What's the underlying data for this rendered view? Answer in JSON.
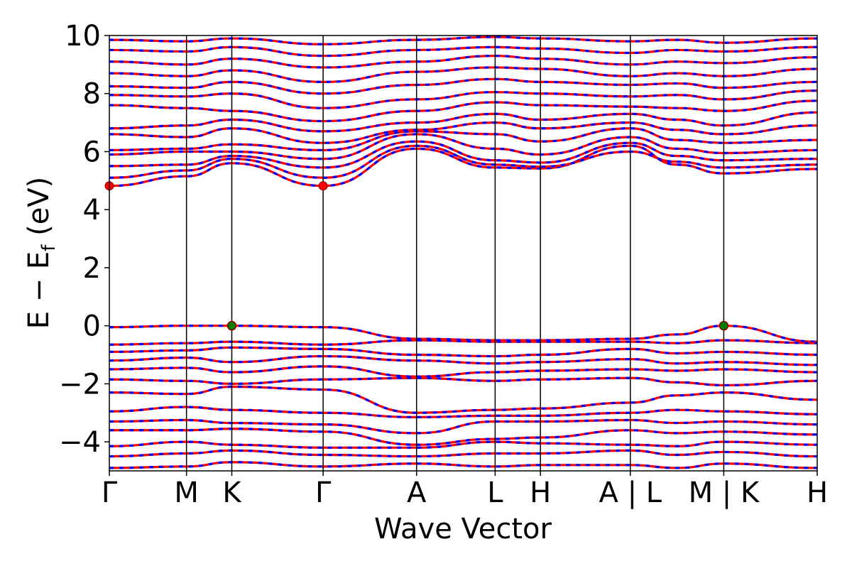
{
  "chart_data": {
    "type": "line",
    "xlabel": "Wave Vector",
    "ylabel": "E − E",
    "ylabel_sub": "f",
    "ylabel_unit": " (eV)",
    "ylim": [
      -5,
      10
    ],
    "yticks": [
      -4,
      -2,
      0,
      2,
      4,
      6,
      8,
      10
    ],
    "x_range": [
      0,
      1
    ],
    "kpoints": [
      {
        "label": "Γ",
        "x": 0.0
      },
      {
        "label": "M",
        "x": 0.109
      },
      {
        "label": "K",
        "x": 0.173
      },
      {
        "label": "Γ",
        "x": 0.302
      },
      {
        "label": "A",
        "x": 0.434
      },
      {
        "label": "L",
        "x": 0.545
      },
      {
        "label": "H",
        "x": 0.609
      },
      {
        "label": "A | L",
        "x": 0.736
      },
      {
        "label": "M | K",
        "x": 0.868
      },
      {
        "label": "H",
        "x": 1.0
      }
    ],
    "grid": false,
    "legend": "none",
    "band_colors": [
      "#ff0000",
      "#0000ff"
    ],
    "marker_colors": {
      "cbm": "#ff0000",
      "vbm": "#008000"
    },
    "cbm_points": [
      {
        "x": 0.0,
        "y": 4.82
      },
      {
        "x": 0.302,
        "y": 4.82
      }
    ],
    "vbm_points": [
      {
        "x": 0.173,
        "y": 0.0
      },
      {
        "x": 0.868,
        "y": 0.0
      }
    ],
    "series": [
      {
        "x": [
          0,
          0.109,
          0.173,
          0.302,
          0.434,
          0.545,
          0.609,
          0.736,
          0.802,
          0.868,
          1.0
        ],
        "values": [
          4.82,
          5.15,
          5.6,
          4.82,
          6.1,
          5.45,
          5.42,
          6.2,
          5.55,
          5.25,
          5.4
        ]
      },
      {
        "x": [
          0,
          0.109,
          0.173,
          0.302,
          0.434,
          0.545,
          0.609,
          0.736,
          0.802,
          0.868,
          1.0
        ],
        "values": [
          5.1,
          5.35,
          5.75,
          5.1,
          6.2,
          5.55,
          5.48,
          6.0,
          5.65,
          5.45,
          5.55
        ]
      },
      {
        "x": [
          0,
          0.109,
          0.173,
          0.302,
          0.434,
          0.545,
          0.609,
          0.736,
          0.802,
          0.868,
          1.0
        ],
        "values": [
          5.5,
          5.55,
          5.85,
          5.45,
          6.35,
          5.7,
          5.62,
          6.3,
          5.85,
          5.7,
          5.75
        ]
      },
      {
        "x": [
          0,
          0.109,
          0.173,
          0.302,
          0.434,
          0.545,
          0.609,
          0.736,
          0.802,
          0.868,
          1.0
        ],
        "values": [
          5.9,
          6.0,
          6.0,
          5.75,
          6.6,
          6.1,
          5.9,
          6.5,
          6.1,
          5.95,
          6.05
        ]
      },
      {
        "x": [
          0,
          0.109,
          0.173,
          0.302,
          0.434,
          0.545,
          0.609,
          0.736,
          0.802,
          0.868,
          1.0
        ],
        "values": [
          6.05,
          6.1,
          6.25,
          6.05,
          6.7,
          6.6,
          6.35,
          6.8,
          6.4,
          6.3,
          6.4
        ]
      },
      {
        "x": [
          0,
          0.109,
          0.173,
          0.302,
          0.434,
          0.545,
          0.609,
          0.736,
          0.802,
          0.868,
          1.0
        ],
        "values": [
          6.6,
          6.5,
          6.8,
          6.3,
          6.75,
          7.0,
          6.8,
          7.0,
          6.75,
          6.6,
          6.9
        ]
      },
      {
        "x": [
          0,
          0.109,
          0.173,
          0.302,
          0.434,
          0.545,
          0.609,
          0.736,
          0.802,
          0.868,
          1.0
        ],
        "values": [
          6.8,
          6.9,
          7.1,
          6.7,
          7.0,
          7.3,
          7.1,
          7.3,
          7.1,
          6.9,
          7.35
        ]
      },
      {
        "x": [
          0,
          0.109,
          0.173,
          0.302,
          0.434,
          0.545,
          0.609,
          0.736,
          0.802,
          0.868,
          1.0
        ],
        "values": [
          7.6,
          7.5,
          7.4,
          7.05,
          7.4,
          7.7,
          7.6,
          7.55,
          7.5,
          7.4,
          7.75
        ]
      },
      {
        "x": [
          0,
          0.109,
          0.173,
          0.302,
          0.434,
          0.545,
          0.609,
          0.736,
          0.802,
          0.868,
          1.0
        ],
        "values": [
          7.95,
          7.9,
          8.0,
          7.5,
          7.8,
          8.05,
          8.0,
          7.9,
          7.95,
          7.8,
          8.1
        ]
      },
      {
        "x": [
          0,
          0.109,
          0.173,
          0.302,
          0.434,
          0.545,
          0.609,
          0.736,
          0.802,
          0.868,
          1.0
        ],
        "values": [
          8.25,
          8.2,
          8.4,
          8.0,
          8.3,
          8.5,
          8.4,
          8.3,
          8.35,
          8.2,
          8.4
        ]
      },
      {
        "x": [
          0,
          0.109,
          0.173,
          0.302,
          0.434,
          0.545,
          0.609,
          0.736,
          0.802,
          0.868,
          1.0
        ],
        "values": [
          8.7,
          8.6,
          8.8,
          8.4,
          8.75,
          8.9,
          8.85,
          8.6,
          8.7,
          8.6,
          8.85
        ]
      },
      {
        "x": [
          0,
          0.109,
          0.173,
          0.302,
          0.434,
          0.545,
          0.609,
          0.736,
          0.802,
          0.868,
          1.0
        ],
        "values": [
          9.1,
          9.0,
          9.2,
          8.9,
          9.1,
          9.3,
          9.2,
          9.0,
          9.1,
          9.05,
          9.25
        ]
      },
      {
        "x": [
          0,
          0.109,
          0.173,
          0.302,
          0.434,
          0.545,
          0.609,
          0.736,
          0.802,
          0.868,
          1.0
        ],
        "values": [
          9.5,
          9.45,
          9.6,
          9.3,
          9.5,
          9.6,
          9.55,
          9.4,
          9.5,
          9.45,
          9.6
        ]
      },
      {
        "x": [
          0,
          0.109,
          0.173,
          0.302,
          0.434,
          0.545,
          0.609,
          0.736,
          0.802,
          0.868,
          1.0
        ],
        "values": [
          9.85,
          9.8,
          9.9,
          9.7,
          9.85,
          9.95,
          9.9,
          9.8,
          9.85,
          9.75,
          9.9
        ]
      },
      {
        "x": [
          0,
          0.109,
          0.173,
          0.302,
          0.434,
          0.545,
          0.609,
          0.736,
          0.802,
          0.868,
          1.0
        ],
        "values": [
          -0.05,
          0.0,
          0.0,
          -0.05,
          -0.45,
          -0.5,
          -0.5,
          -0.45,
          -0.3,
          0.0,
          -0.55
        ]
      },
      {
        "x": [
          0,
          0.109,
          0.173,
          0.302,
          0.434,
          0.545,
          0.609,
          0.736,
          0.802,
          0.868,
          1.0
        ],
        "values": [
          -0.65,
          -0.6,
          -0.55,
          -0.65,
          -0.5,
          -0.55,
          -0.55,
          -0.55,
          -0.6,
          -0.5,
          -0.6
        ]
      },
      {
        "x": [
          0,
          0.109,
          0.173,
          0.302,
          0.434,
          0.545,
          0.609,
          0.736,
          0.802,
          0.868,
          1.0
        ],
        "values": [
          -0.9,
          -0.85,
          -0.75,
          -0.8,
          -1.0,
          -1.05,
          -1.0,
          -0.8,
          -0.95,
          -0.9,
          -1.0
        ]
      },
      {
        "x": [
          0,
          0.109,
          0.173,
          0.302,
          0.434,
          0.545,
          0.609,
          0.736,
          0.802,
          0.868,
          1.0
        ],
        "values": [
          -1.2,
          -1.1,
          -1.25,
          -1.05,
          -1.2,
          -1.3,
          -1.25,
          -1.15,
          -1.3,
          -1.25,
          -1.35
        ]
      },
      {
        "x": [
          0,
          0.109,
          0.173,
          0.302,
          0.434,
          0.545,
          0.609,
          0.736,
          0.802,
          0.868,
          1.0
        ],
        "values": [
          -1.5,
          -1.45,
          -1.6,
          -1.4,
          -1.75,
          -1.6,
          -1.55,
          -1.5,
          -1.55,
          -1.5,
          -1.6
        ]
      },
      {
        "x": [
          0,
          0.109,
          0.173,
          0.302,
          0.434,
          0.545,
          0.609,
          0.736,
          0.802,
          0.868,
          1.0
        ],
        "values": [
          -1.85,
          -1.9,
          -2.0,
          -1.85,
          -1.8,
          -1.9,
          -1.85,
          -1.8,
          -1.95,
          -2.05,
          -1.9
        ]
      },
      {
        "x": [
          0,
          0.109,
          0.173,
          0.302,
          0.434,
          0.545,
          0.609,
          0.736,
          0.802,
          0.868,
          1.0
        ],
        "values": [
          -2.3,
          -2.35,
          -2.1,
          -2.2,
          -3.0,
          -2.9,
          -2.85,
          -2.65,
          -2.4,
          -2.3,
          -2.55
        ]
      },
      {
        "x": [
          0,
          0.109,
          0.173,
          0.302,
          0.434,
          0.545,
          0.609,
          0.736,
          0.802,
          0.868,
          1.0
        ],
        "values": [
          -2.95,
          -2.8,
          -2.9,
          -3.0,
          -3.15,
          -3.1,
          -3.1,
          -3.0,
          -2.9,
          -2.95,
          -3.05
        ]
      },
      {
        "x": [
          0,
          0.109,
          0.173,
          0.302,
          0.434,
          0.545,
          0.609,
          0.736,
          0.802,
          0.868,
          1.0
        ],
        "values": [
          -3.3,
          -3.25,
          -3.35,
          -3.4,
          -3.7,
          -3.3,
          -3.3,
          -3.25,
          -3.35,
          -3.3,
          -3.4
        ]
      },
      {
        "x": [
          0,
          0.109,
          0.173,
          0.302,
          0.434,
          0.545,
          0.609,
          0.736,
          0.802,
          0.868,
          1.0
        ],
        "values": [
          -3.6,
          -3.6,
          -3.55,
          -3.65,
          -4.1,
          -3.9,
          -3.85,
          -3.6,
          -3.7,
          -3.65,
          -3.75
        ]
      },
      {
        "x": [
          0,
          0.109,
          0.173,
          0.302,
          0.434,
          0.545,
          0.609,
          0.736,
          0.802,
          0.868,
          1.0
        ],
        "values": [
          -4.15,
          -4.0,
          -4.1,
          -4.2,
          -4.2,
          -4.0,
          -4.05,
          -4.1,
          -4.15,
          -4.0,
          -4.1
        ]
      },
      {
        "x": [
          0,
          0.109,
          0.173,
          0.302,
          0.434,
          0.545,
          0.609,
          0.736,
          0.802,
          0.868,
          1.0
        ],
        "values": [
          -4.5,
          -4.4,
          -4.3,
          -4.45,
          -4.5,
          -4.4,
          -4.4,
          -4.3,
          -4.45,
          -4.35,
          -4.5
        ]
      },
      {
        "x": [
          0,
          0.109,
          0.173,
          0.302,
          0.434,
          0.545,
          0.609,
          0.736,
          0.802,
          0.868,
          1.0
        ],
        "values": [
          -4.9,
          -4.85,
          -4.7,
          -4.85,
          -4.75,
          -4.85,
          -4.8,
          -4.8,
          -4.9,
          -4.75,
          -4.9
        ]
      }
    ]
  }
}
